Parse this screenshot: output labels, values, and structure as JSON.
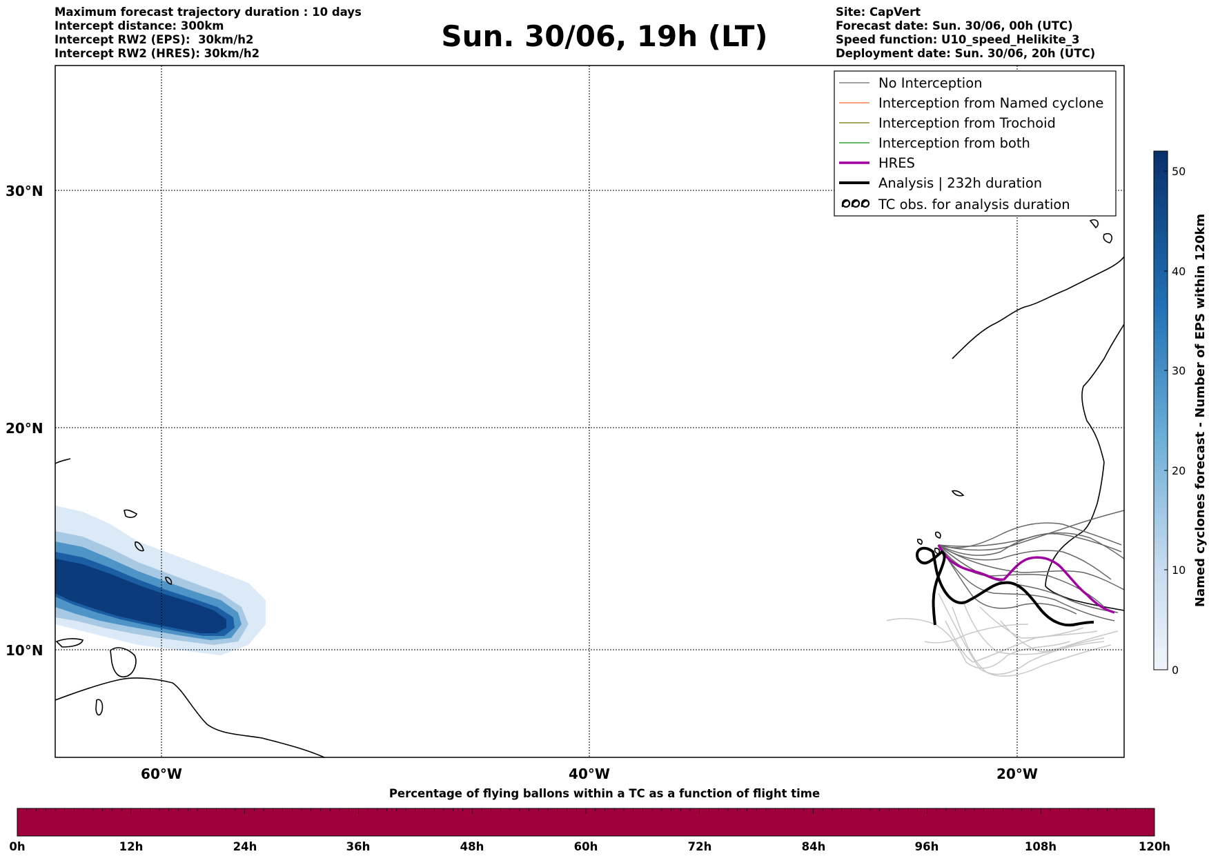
{
  "header_left": [
    "Maximum forecast trajectory duration : 10 days",
    "Intercept distance: 300km",
    "Intercept RW2 (EPS):  30km/h2",
    "Intercept RW2 (HRES): 30km/h2"
  ],
  "header_right": [
    "Site: CapVert",
    "Forecast date: Sun. 30/06, 00h (UTC)",
    "Speed function: U10_speed_Helikite_3",
    "Deployment date: Sun. 30/06, 20h (UTC)"
  ],
  "title": "Sun. 30/06, 19h (LT)",
  "map": {
    "lat_labels": [
      "30°N",
      "20°N",
      "10°N"
    ],
    "lon_labels": [
      "60°W",
      "40°W",
      "20°W"
    ],
    "lon_range_deg": [
      -65,
      -15
    ],
    "lat_range_deg": [
      5.5,
      34.5
    ]
  },
  "legend": {
    "items": [
      {
        "label": "No Interception",
        "color": "#7f7f7f",
        "style": "thin"
      },
      {
        "label": "Interception from Named cyclone",
        "color": "#ff7f50",
        "style": "thin"
      },
      {
        "label": "Interception from Trochoid",
        "color": "#8b8b2a",
        "style": "thin"
      },
      {
        "label": "Interception from both",
        "color": "#2ca02c",
        "style": "thin"
      },
      {
        "label": "HRES",
        "color": "#a000a0",
        "style": "thick"
      },
      {
        "label": "Analysis | 232h duration",
        "color": "#000000",
        "style": "thicker"
      },
      {
        "label": "TC obs. for analysis duration",
        "color": "#000000",
        "style": "tc-symbol"
      }
    ]
  },
  "colorbar_right": {
    "label": "Named cyclones forecast - Number of EPS within 120km",
    "ticks": [
      "0",
      "10",
      "20",
      "30",
      "40",
      "50"
    ],
    "range": [
      0,
      52
    ],
    "color_low": "#f0f5fb",
    "color_high": "#08306b"
  },
  "bottom_bar": {
    "title": "Percentage of flying ballons within a TC as a function of flight time",
    "ticks": [
      "0h",
      "12h",
      "24h",
      "36h",
      "48h",
      "60h",
      "72h",
      "84h",
      "96h",
      "108h",
      "120h"
    ],
    "color": "#a0003c",
    "percent_all": 0
  },
  "colors": {
    "grid": "#000000",
    "eps_dark": "#666666",
    "eps_light": "#c8c8c8",
    "hres": "#a000a0",
    "analysis": "#000000"
  }
}
